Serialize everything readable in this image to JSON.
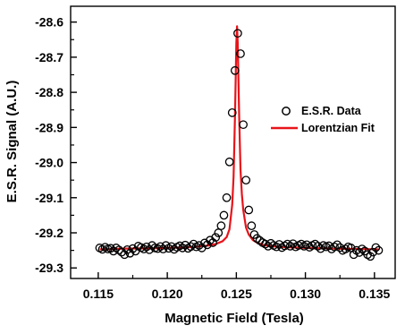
{
  "chart_data": {
    "type": "scatter",
    "xlabel": "Magnetic Field (Tesla)",
    "ylabel": "E.S.R. Signal (A.U.)",
    "xlim": [
      0.113,
      0.1365
    ],
    "ylim": [
      -29.33,
      -28.555
    ],
    "x_ticks": [
      0.115,
      0.12,
      0.125,
      0.13,
      0.135
    ],
    "x_tick_labels": [
      "0.115",
      "0.120",
      "0.125",
      "0.130",
      "0.135"
    ],
    "y_ticks": [
      -28.6,
      -28.7,
      -28.8,
      -28.9,
      -29.0,
      -29.1,
      -29.2,
      -29.3
    ],
    "y_tick_labels": [
      "-28.6",
      "-28.7",
      "-28.8",
      "-28.9",
      "-29.0",
      "-29.1",
      "-29.2",
      "-29.3"
    ],
    "grid": false,
    "legend_position": "right",
    "series": [
      {
        "name": "E.S.R. Data",
        "kind": "scatter",
        "marker": "open-circle",
        "color": "#000000",
        "x": [
          0.1151,
          0.1153,
          0.1155,
          0.1157,
          0.1159,
          0.1161,
          0.1163,
          0.1165,
          0.1167,
          0.1169,
          0.1171,
          0.1173,
          0.1175,
          0.1177,
          0.1179,
          0.1181,
          0.1183,
          0.1185,
          0.1187,
          0.1189,
          0.1191,
          0.1193,
          0.1195,
          0.1197,
          0.1199,
          0.1201,
          0.1203,
          0.1205,
          0.1207,
          0.1209,
          0.1211,
          0.1213,
          0.1215,
          0.1217,
          0.1219,
          0.1221,
          0.1223,
          0.1225,
          0.1227,
          0.1229,
          0.1231,
          0.1233,
          0.1235,
          0.1237,
          0.1239,
          0.1241,
          0.1243,
          0.1245,
          0.1247,
          0.1249,
          0.1251,
          0.1253,
          0.1255,
          0.1257,
          0.1259,
          0.1261,
          0.1263,
          0.1265,
          0.1267,
          0.1269,
          0.1271,
          0.1273,
          0.1275,
          0.1277,
          0.1279,
          0.1281,
          0.1283,
          0.1285,
          0.1287,
          0.1289,
          0.1291,
          0.1293,
          0.1295,
          0.1297,
          0.1299,
          0.1301,
          0.1303,
          0.1305,
          0.1307,
          0.1309,
          0.1311,
          0.1313,
          0.1315,
          0.1317,
          0.1319,
          0.1321,
          0.1323,
          0.1325,
          0.1327,
          0.1329,
          0.1331,
          0.1333,
          0.1335,
          0.1337,
          0.1339,
          0.1341,
          0.1343,
          0.1345,
          0.1347,
          0.1349,
          0.1351,
          0.1353
        ],
        "y": [
          -29.243,
          -29.247,
          -29.241,
          -29.246,
          -29.244,
          -29.252,
          -29.243,
          -29.249,
          -29.255,
          -29.262,
          -29.248,
          -29.258,
          -29.245,
          -29.252,
          -29.238,
          -29.242,
          -29.246,
          -29.24,
          -29.248,
          -29.236,
          -29.243,
          -29.245,
          -29.239,
          -29.246,
          -29.236,
          -29.244,
          -29.239,
          -29.247,
          -29.241,
          -29.237,
          -29.243,
          -29.235,
          -29.244,
          -29.239,
          -29.232,
          -29.24,
          -29.236,
          -29.243,
          -29.229,
          -29.234,
          -29.221,
          -29.228,
          -29.213,
          -29.2,
          -29.18,
          -29.15,
          -29.1,
          -28.998,
          -28.858,
          -28.738,
          -28.632,
          -28.69,
          -28.892,
          -29.05,
          -29.135,
          -29.18,
          -29.205,
          -29.216,
          -29.222,
          -29.228,
          -29.232,
          -29.238,
          -29.23,
          -29.236,
          -29.24,
          -29.233,
          -29.242,
          -29.237,
          -29.232,
          -29.238,
          -29.231,
          -29.24,
          -29.236,
          -29.232,
          -29.238,
          -29.234,
          -29.241,
          -29.236,
          -29.232,
          -29.238,
          -29.245,
          -29.236,
          -29.24,
          -29.237,
          -29.246,
          -29.24,
          -29.234,
          -29.242,
          -29.25,
          -29.246,
          -29.24,
          -29.243,
          -29.262,
          -29.25,
          -29.256,
          -29.246,
          -29.252,
          -29.262,
          -29.267,
          -29.255,
          -29.242,
          -29.25
        ]
      },
      {
        "name": "Lorentzian Fit",
        "kind": "line",
        "color": "#e8141a",
        "x": [
          0.1151,
          0.117,
          0.119,
          0.121,
          0.122,
          0.123,
          0.1235,
          0.124,
          0.1243,
          0.1245,
          0.1247,
          0.1248,
          0.1249,
          0.125,
          0.12505,
          0.1251,
          0.1252,
          0.1253,
          0.1254,
          0.1255,
          0.1257,
          0.1259,
          0.1262,
          0.1265,
          0.127,
          0.128,
          0.13,
          0.132,
          0.134,
          0.1353
        ],
        "y": [
          -29.247,
          -29.245,
          -29.244,
          -29.242,
          -29.24,
          -29.236,
          -29.232,
          -29.224,
          -29.212,
          -29.19,
          -29.12,
          -29.04,
          -28.87,
          -28.66,
          -28.612,
          -28.66,
          -28.86,
          -29.02,
          -29.09,
          -29.135,
          -29.185,
          -29.205,
          -29.221,
          -29.228,
          -29.235,
          -29.24,
          -29.243,
          -29.245,
          -29.246,
          -29.247
        ]
      }
    ]
  }
}
